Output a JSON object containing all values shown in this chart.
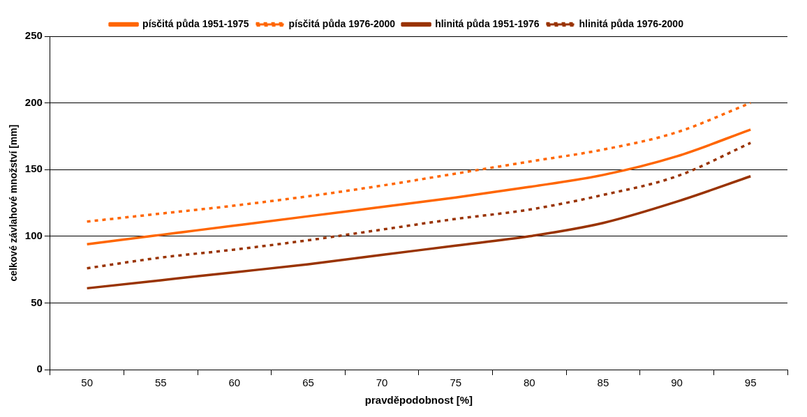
{
  "chart_data": {
    "type": "line",
    "xlabel": "pravděpodobnost [%]",
    "ylabel": "celkové závlahové množství [mm]",
    "categories": [
      "50",
      "55",
      "60",
      "65",
      "70",
      "75",
      "80",
      "85",
      "90",
      "95"
    ],
    "ylim": [
      0,
      250
    ],
    "yticks": [
      0,
      50,
      100,
      150,
      200,
      250
    ],
    "grid": "y",
    "legend": "top",
    "marker": "none",
    "series": [
      {
        "name": "písčitá půda 1951-1975",
        "color": "#ff6600",
        "line_style": "solid",
        "values": [
          94,
          101,
          108,
          115,
          122,
          129,
          137,
          146,
          160,
          180
        ]
      },
      {
        "name": "písčitá půda 1976-2000",
        "color": "#ff6600",
        "line_style": "dotted",
        "values": [
          111,
          117,
          123,
          130,
          138,
          147,
          156,
          165,
          178,
          200
        ]
      },
      {
        "name": "hlinitá půda 1951-1976",
        "color": "#993300",
        "line_style": "solid",
        "values": [
          61,
          67,
          73,
          79,
          86,
          93,
          100,
          110,
          126,
          145
        ]
      },
      {
        "name": "hlinitá půda 1976-2000",
        "color": "#993300",
        "line_style": "dotted",
        "values": [
          76,
          84,
          90,
          97,
          105,
          113,
          120,
          131,
          145,
          170
        ]
      }
    ]
  }
}
